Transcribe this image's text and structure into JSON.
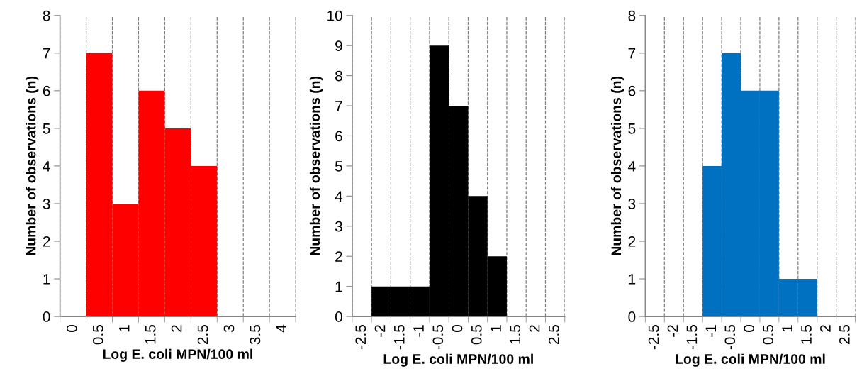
{
  "chart_data": [
    {
      "type": "bar",
      "xlabel": "Log E. coli MPN/100 ml",
      "ylabel": "Number of observations (n)",
      "categories": [
        "0",
        "0.5",
        "1",
        "1.5",
        "2",
        "2.5",
        "3",
        "3.5",
        "4"
      ],
      "values": [
        null,
        7,
        3,
        6,
        5,
        4,
        null,
        null,
        null
      ],
      "color": "#ff0000",
      "ylim": [
        0,
        8
      ],
      "yticks": [
        0,
        1,
        2,
        3,
        4,
        5,
        6,
        7,
        8
      ],
      "grid": "x",
      "legend": false
    },
    {
      "type": "bar",
      "xlabel": "Log E. coli MPN/100 ml",
      "ylabel": "Number of observations (n)",
      "categories": [
        "-2.5",
        "-2",
        "-1.5",
        "-1",
        "-0.5",
        "0",
        "0.5",
        "1",
        "1.5",
        "2",
        "2.5"
      ],
      "values": [
        null,
        1,
        1,
        1,
        9,
        7,
        4,
        2,
        null,
        null,
        null
      ],
      "color": "#000000",
      "ylim": [
        0,
        10
      ],
      "yticks": [
        0,
        1,
        2,
        3,
        4,
        5,
        6,
        7,
        8,
        9,
        10
      ],
      "grid": "x",
      "legend": false
    },
    {
      "type": "bar",
      "xlabel": "Log E. coli MPN/100 ml",
      "ylabel": "Number of observations (n)",
      "categories": [
        "-2.5",
        "-2",
        "-1.5",
        "-1",
        "-0.5",
        "0",
        "0.5",
        "1",
        "1.5",
        "2",
        "2.5"
      ],
      "values": [
        null,
        null,
        null,
        4,
        7,
        6,
        6,
        1,
        1,
        null,
        null
      ],
      "color": "#0070c0",
      "ylim": [
        0,
        8
      ],
      "yticks": [
        0,
        1,
        2,
        3,
        4,
        5,
        6,
        7,
        8
      ],
      "grid": "x",
      "legend": false
    }
  ]
}
